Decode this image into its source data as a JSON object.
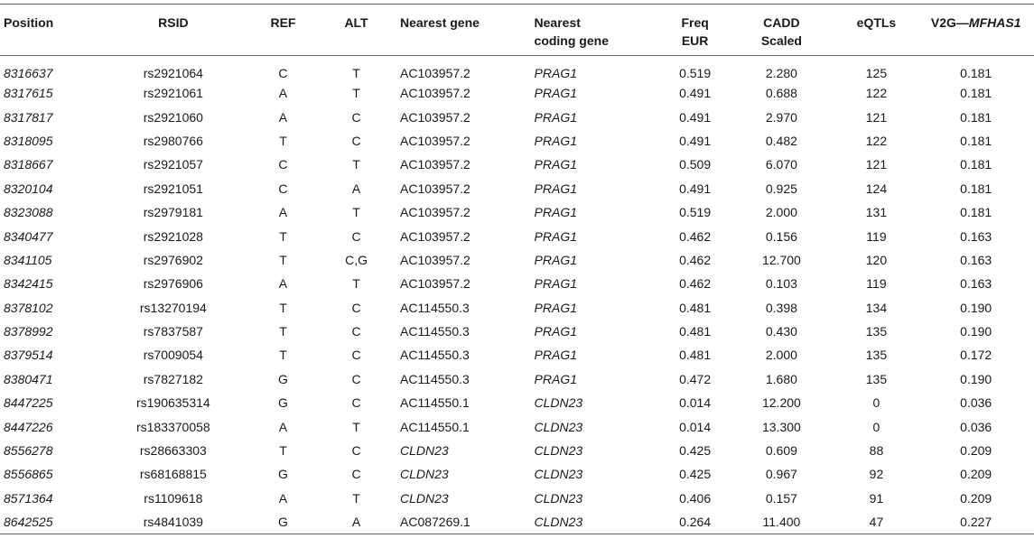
{
  "headers": {
    "position": "Position",
    "rsid": "RSID",
    "ref": "REF",
    "alt": "ALT",
    "nearest_gene": "Nearest gene",
    "nearest_coding_gene_line1": "Nearest",
    "nearest_coding_gene_line2": "coding gene",
    "freq_line1": "Freq",
    "freq_line2": "EUR",
    "cadd_line1": "CADD",
    "cadd_line2": "Scaled",
    "eqtls": "eQTLs",
    "v2g_prefix": "V2G—",
    "v2g_gene": "MFHAS1"
  },
  "rows": [
    {
      "position": "8316637",
      "rsid": "rs2921064",
      "ref": "C",
      "alt": "T",
      "nearest_gene": "AC103957.2",
      "nearest_gene_italic": false,
      "coding_gene": "PRAG1",
      "freq": "0.519",
      "cadd": "2.280",
      "eqtls": "125",
      "v2g": "0.181"
    },
    {
      "position": "8317615",
      "rsid": "rs2921061",
      "ref": "A",
      "alt": "T",
      "nearest_gene": "AC103957.2",
      "nearest_gene_italic": false,
      "coding_gene": "PRAG1",
      "freq": "0.491",
      "cadd": "0.688",
      "eqtls": "122",
      "v2g": "0.181"
    },
    {
      "position": "8317817",
      "rsid": "rs2921060",
      "ref": "A",
      "alt": "C",
      "nearest_gene": "AC103957.2",
      "nearest_gene_italic": false,
      "coding_gene": "PRAG1",
      "freq": "0.491",
      "cadd": "2.970",
      "eqtls": "121",
      "v2g": "0.181"
    },
    {
      "position": "8318095",
      "rsid": "rs2980766",
      "ref": "T",
      "alt": "C",
      "nearest_gene": "AC103957.2",
      "nearest_gene_italic": false,
      "coding_gene": "PRAG1",
      "freq": "0.491",
      "cadd": "0.482",
      "eqtls": "122",
      "v2g": "0.181"
    },
    {
      "position": "8318667",
      "rsid": "rs2921057",
      "ref": "C",
      "alt": "T",
      "nearest_gene": "AC103957.2",
      "nearest_gene_italic": false,
      "coding_gene": "PRAG1",
      "freq": "0.509",
      "cadd": "6.070",
      "eqtls": "121",
      "v2g": "0.181"
    },
    {
      "position": "8320104",
      "rsid": "rs2921051",
      "ref": "C",
      "alt": "A",
      "nearest_gene": "AC103957.2",
      "nearest_gene_italic": false,
      "coding_gene": "PRAG1",
      "freq": "0.491",
      "cadd": "0.925",
      "eqtls": "124",
      "v2g": "0.181"
    },
    {
      "position": "8323088",
      "rsid": "rs2979181",
      "ref": "A",
      "alt": "T",
      "nearest_gene": "AC103957.2",
      "nearest_gene_italic": false,
      "coding_gene": "PRAG1",
      "freq": "0.519",
      "cadd": "2.000",
      "eqtls": "131",
      "v2g": "0.181"
    },
    {
      "position": "8340477",
      "rsid": "rs2921028",
      "ref": "T",
      "alt": "C",
      "nearest_gene": "AC103957.2",
      "nearest_gene_italic": false,
      "coding_gene": "PRAG1",
      "freq": "0.462",
      "cadd": "0.156",
      "eqtls": "119",
      "v2g": "0.163"
    },
    {
      "position": "8341105",
      "rsid": "rs2976902",
      "ref": "T",
      "alt": "C,G",
      "nearest_gene": "AC103957.2",
      "nearest_gene_italic": false,
      "coding_gene": "PRAG1",
      "freq": "0.462",
      "cadd": "12.700",
      "eqtls": "120",
      "v2g": "0.163"
    },
    {
      "position": "8342415",
      "rsid": "rs2976906",
      "ref": "A",
      "alt": "T",
      "nearest_gene": "AC103957.2",
      "nearest_gene_italic": false,
      "coding_gene": "PRAG1",
      "freq": "0.462",
      "cadd": "0.103",
      "eqtls": "119",
      "v2g": "0.163"
    },
    {
      "position": "8378102",
      "rsid": "rs13270194",
      "ref": "T",
      "alt": "C",
      "nearest_gene": "AC114550.3",
      "nearest_gene_italic": false,
      "coding_gene": "PRAG1",
      "freq": "0.481",
      "cadd": "0.398",
      "eqtls": "134",
      "v2g": "0.190"
    },
    {
      "position": "8378992",
      "rsid": "rs7837587",
      "ref": "T",
      "alt": "C",
      "nearest_gene": "AC114550.3",
      "nearest_gene_italic": false,
      "coding_gene": "PRAG1",
      "freq": "0.481",
      "cadd": "0.430",
      "eqtls": "135",
      "v2g": "0.190"
    },
    {
      "position": "8379514",
      "rsid": "rs7009054",
      "ref": "T",
      "alt": "C",
      "nearest_gene": "AC114550.3",
      "nearest_gene_italic": false,
      "coding_gene": "PRAG1",
      "freq": "0.481",
      "cadd": "2.000",
      "eqtls": "135",
      "v2g": "0.172"
    },
    {
      "position": "8380471",
      "rsid": "rs7827182",
      "ref": "G",
      "alt": "C",
      "nearest_gene": "AC114550.3",
      "nearest_gene_italic": false,
      "coding_gene": "PRAG1",
      "freq": "0.472",
      "cadd": "1.680",
      "eqtls": "135",
      "v2g": "0.190"
    },
    {
      "position": "8447225",
      "rsid": "rs190635314",
      "ref": "G",
      "alt": "C",
      "nearest_gene": "AC114550.1",
      "nearest_gene_italic": false,
      "coding_gene": "CLDN23",
      "freq": "0.014",
      "cadd": "12.200",
      "eqtls": "0",
      "v2g": "0.036"
    },
    {
      "position": "8447226",
      "rsid": "rs183370058",
      "ref": "A",
      "alt": "T",
      "nearest_gene": "AC114550.1",
      "nearest_gene_italic": false,
      "coding_gene": "CLDN23",
      "freq": "0.014",
      "cadd": "13.300",
      "eqtls": "0",
      "v2g": "0.036"
    },
    {
      "position": "8556278",
      "rsid": "rs28663303",
      "ref": "T",
      "alt": "C",
      "nearest_gene": "CLDN23",
      "nearest_gene_italic": true,
      "coding_gene": "CLDN23",
      "freq": "0.425",
      "cadd": "0.609",
      "eqtls": "88",
      "v2g": "0.209"
    },
    {
      "position": "8556865",
      "rsid": "rs68168815",
      "ref": "G",
      "alt": "C",
      "nearest_gene": "CLDN23",
      "nearest_gene_italic": true,
      "coding_gene": "CLDN23",
      "freq": "0.425",
      "cadd": "0.967",
      "eqtls": "92",
      "v2g": "0.209"
    },
    {
      "position": "8571364",
      "rsid": "rs1109618",
      "ref": "A",
      "alt": "T",
      "nearest_gene": "CLDN23",
      "nearest_gene_italic": true,
      "coding_gene": "CLDN23",
      "freq": "0.406",
      "cadd": "0.157",
      "eqtls": "91",
      "v2g": "0.209"
    },
    {
      "position": "8642525",
      "rsid": "rs4841039",
      "ref": "G",
      "alt": "A",
      "nearest_gene": "AC087269.1",
      "nearest_gene_italic": false,
      "coding_gene": "CLDN23",
      "freq": "0.264",
      "cadd": "11.400",
      "eqtls": "47",
      "v2g": "0.227"
    }
  ]
}
